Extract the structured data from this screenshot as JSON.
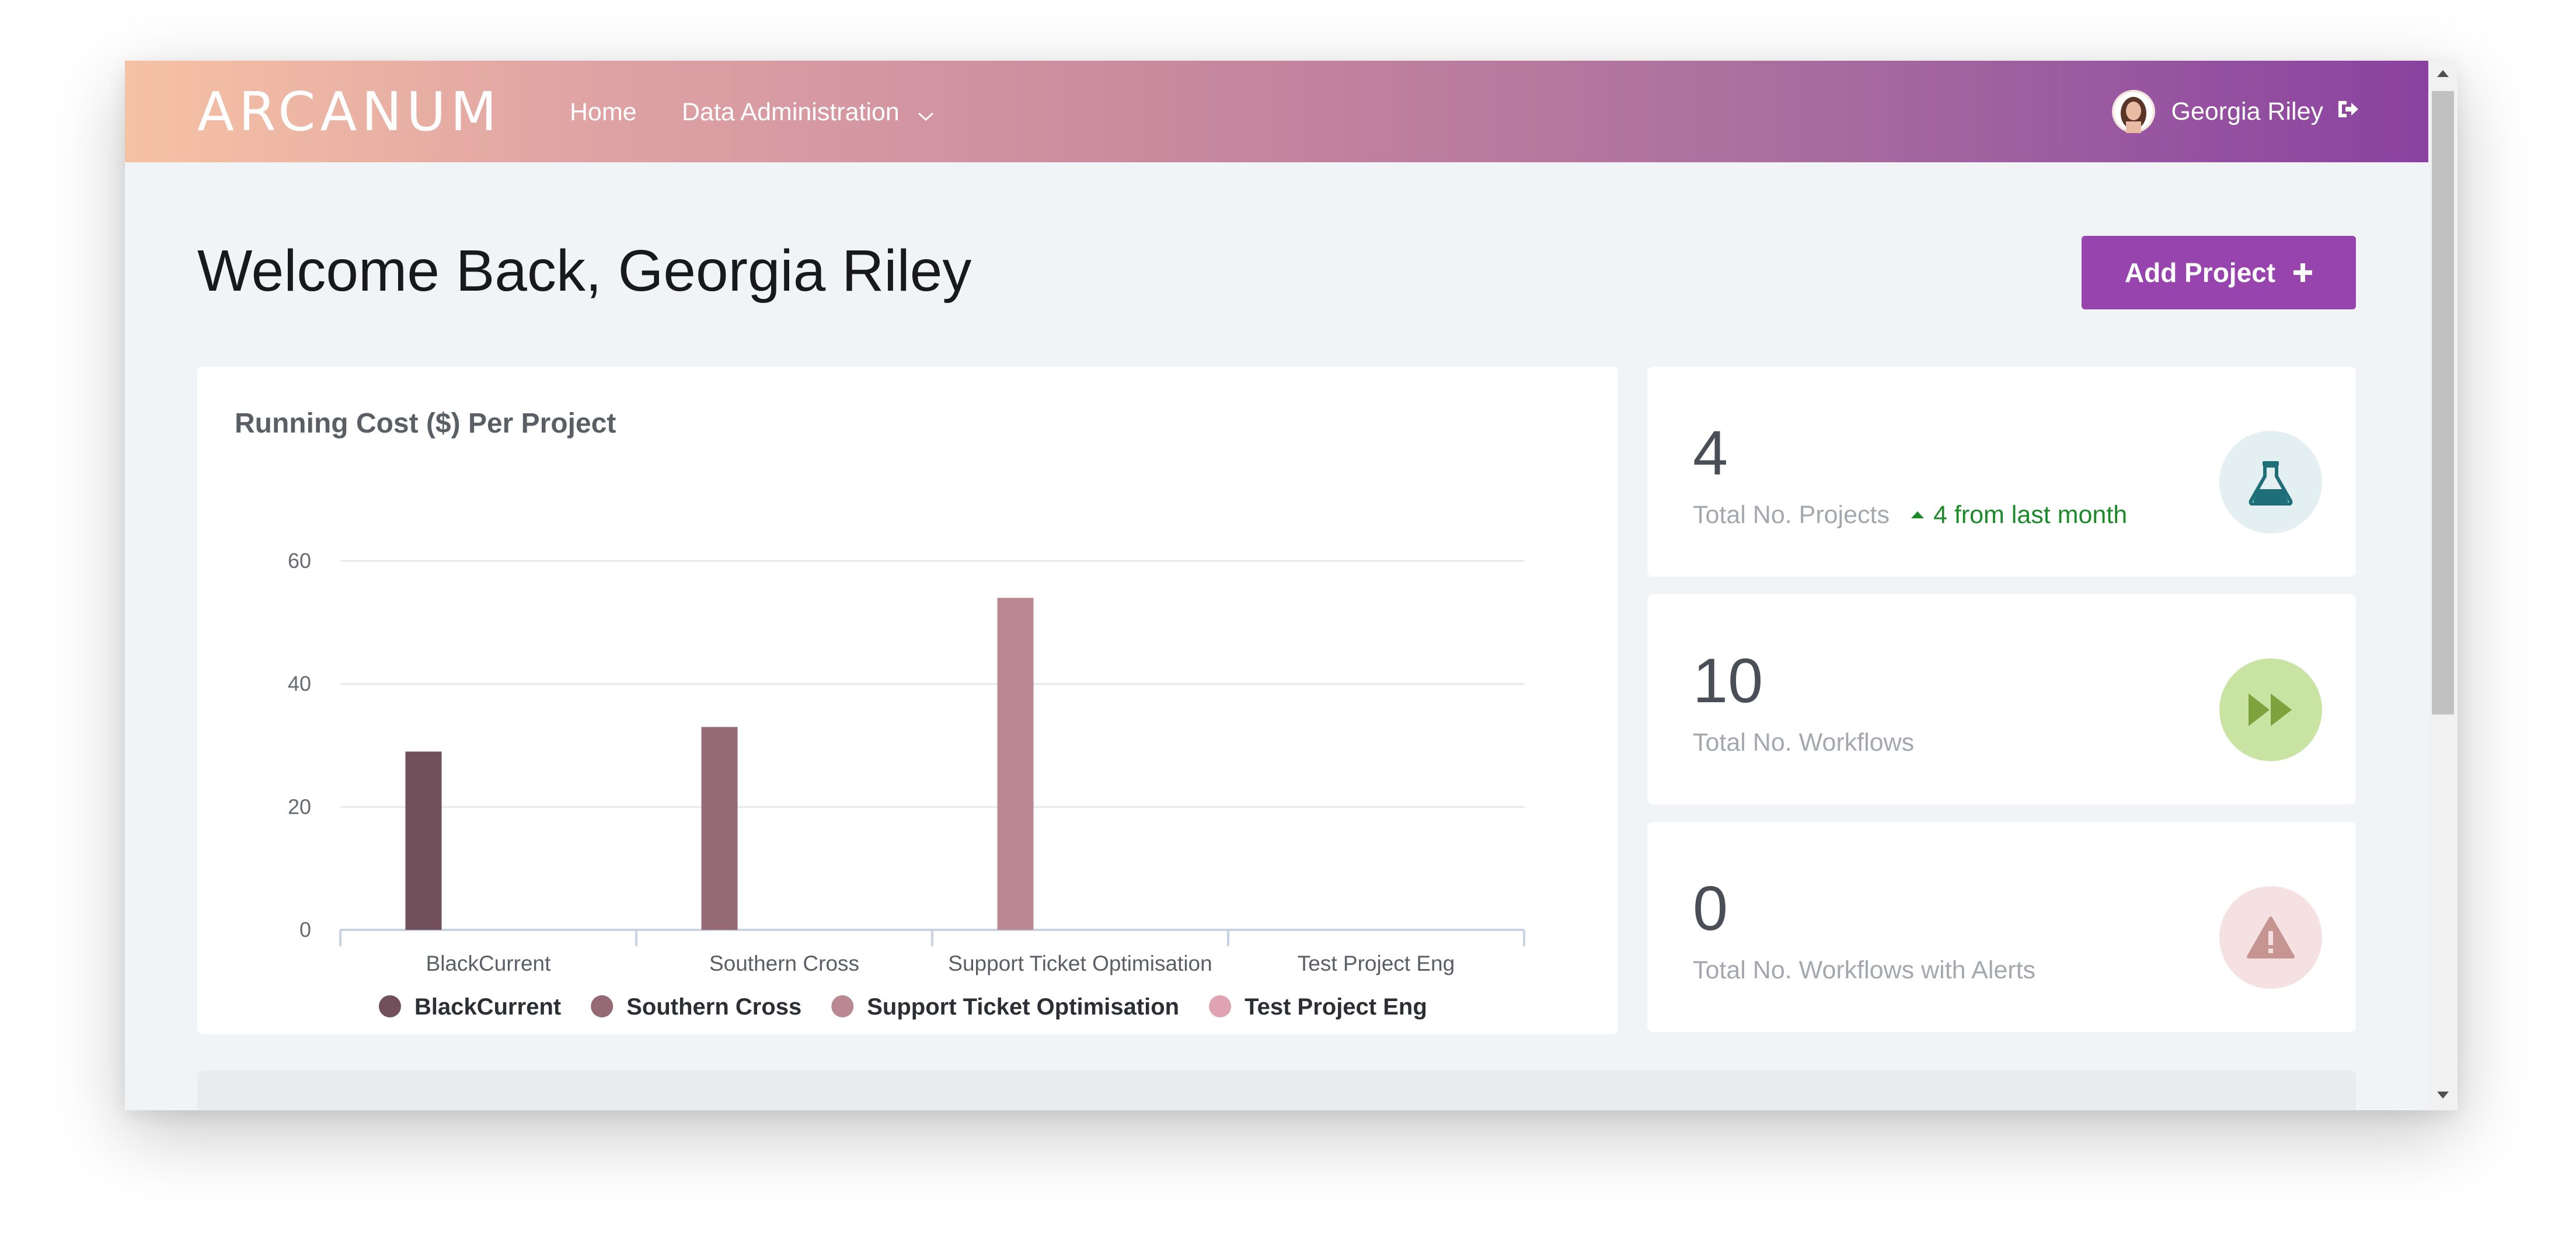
{
  "navbar": {
    "logo": "ARCANUM",
    "home": "Home",
    "data_admin": "Data Administration",
    "user_name": "Georgia Riley"
  },
  "page": {
    "welcome": "Welcome Back, Georgia Riley",
    "add_project": "Add Project"
  },
  "colors": {
    "accent": "#9844ae",
    "trend_green": "#1d8a2a",
    "projects_icon": "#1f6f7a",
    "workflows_icon": "#7fa33c",
    "alerts_icon": "#c79591"
  },
  "chart_data": {
    "type": "bar",
    "title": "Running Cost ($) Per Project",
    "categories": [
      "BlackCurrent",
      "Southern Cross",
      "Support Ticket Optimisation",
      "Test Project Eng"
    ],
    "values": [
      29,
      33,
      54,
      0
    ],
    "colors": [
      "#714f5b",
      "#966a75",
      "#b98890",
      "#e0a3b3"
    ],
    "ylim": [
      0,
      60
    ],
    "yticks": [
      0,
      20,
      40,
      60
    ],
    "grid": true,
    "legend": [
      "BlackCurrent",
      "Southern Cross",
      "Support Ticket Optimisation",
      "Test Project Eng"
    ],
    "legend_position": "bottom"
  },
  "stats": [
    {
      "value": "4",
      "label": "Total No. Projects",
      "trend": "4 from last month",
      "icon": "flask-icon"
    },
    {
      "value": "10",
      "label": "Total No. Workflows",
      "icon": "fast-forward-icon"
    },
    {
      "value": "0",
      "label": "Total No. Workflows with Alerts",
      "icon": "warning-icon"
    }
  ]
}
